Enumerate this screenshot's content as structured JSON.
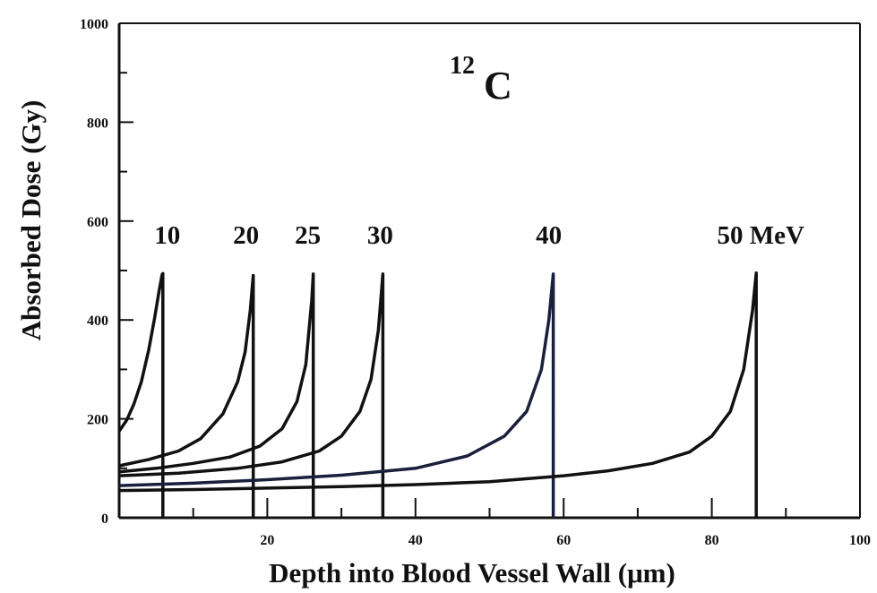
{
  "chart_data": {
    "type": "line",
    "annotation": {
      "mass_number": "12",
      "element": "C"
    },
    "xlabel": "Depth into Blood Vessel Wall (μm)",
    "ylabel": "Absorbed Dose (Gy)",
    "xlim": [
      0,
      100
    ],
    "ylim": [
      0,
      1000
    ],
    "x_ticks": [
      20,
      40,
      60,
      80,
      100
    ],
    "x_minor_ticks": [
      10,
      30,
      50,
      70,
      90
    ],
    "y_ticks": [
      0,
      200,
      400,
      600,
      800,
      1000
    ],
    "y_minor_ticks": [
      100,
      300,
      500,
      700,
      900
    ],
    "grid": false,
    "legend": "none",
    "series": [
      {
        "label": "10",
        "color": "#111111",
        "x": [
          0,
          1,
          2,
          3,
          4,
          4.8,
          5.4,
          5.8,
          5.9,
          5.9
        ],
        "y": [
          175,
          197,
          230,
          275,
          340,
          405,
          460,
          492,
          494,
          0
        ]
      },
      {
        "label": "20",
        "color": "#111111",
        "x": [
          0,
          4,
          8,
          11,
          14,
          16,
          17,
          17.7,
          18.1,
          18.1
        ],
        "y": [
          105,
          118,
          135,
          160,
          210,
          275,
          335,
          420,
          490,
          0
        ]
      },
      {
        "label": "25",
        "color": "#111111",
        "x": [
          0,
          5,
          10,
          15,
          19,
          22,
          24,
          25.2,
          26,
          26.2,
          26.2
        ],
        "y": [
          93,
          100,
          110,
          123,
          145,
          180,
          235,
          310,
          440,
          493,
          0
        ]
      },
      {
        "label": "30",
        "color": "#111111",
        "x": [
          0,
          8,
          16,
          22,
          27,
          30,
          32.5,
          34,
          35,
          35.6,
          35.6
        ],
        "y": [
          85,
          90,
          100,
          113,
          135,
          165,
          215,
          280,
          380,
          493,
          0
        ]
      },
      {
        "label": "40",
        "color": "#1a1f3c",
        "x": [
          0,
          10,
          20,
          30,
          40,
          47,
          52,
          55,
          57,
          58,
          58.6,
          58.6
        ],
        "y": [
          65,
          70,
          77,
          86,
          100,
          125,
          165,
          215,
          300,
          400,
          493,
          0
        ]
      },
      {
        "label": "50 MeV",
        "color": "#111111",
        "x": [
          0,
          10,
          20,
          30,
          40,
          50,
          60,
          66,
          72,
          77,
          80,
          82.5,
          84.3,
          85.5,
          86,
          86
        ],
        "y": [
          55,
          57,
          60,
          63,
          67,
          73,
          85,
          95,
          110,
          133,
          165,
          215,
          300,
          420,
          495,
          0
        ]
      }
    ]
  }
}
